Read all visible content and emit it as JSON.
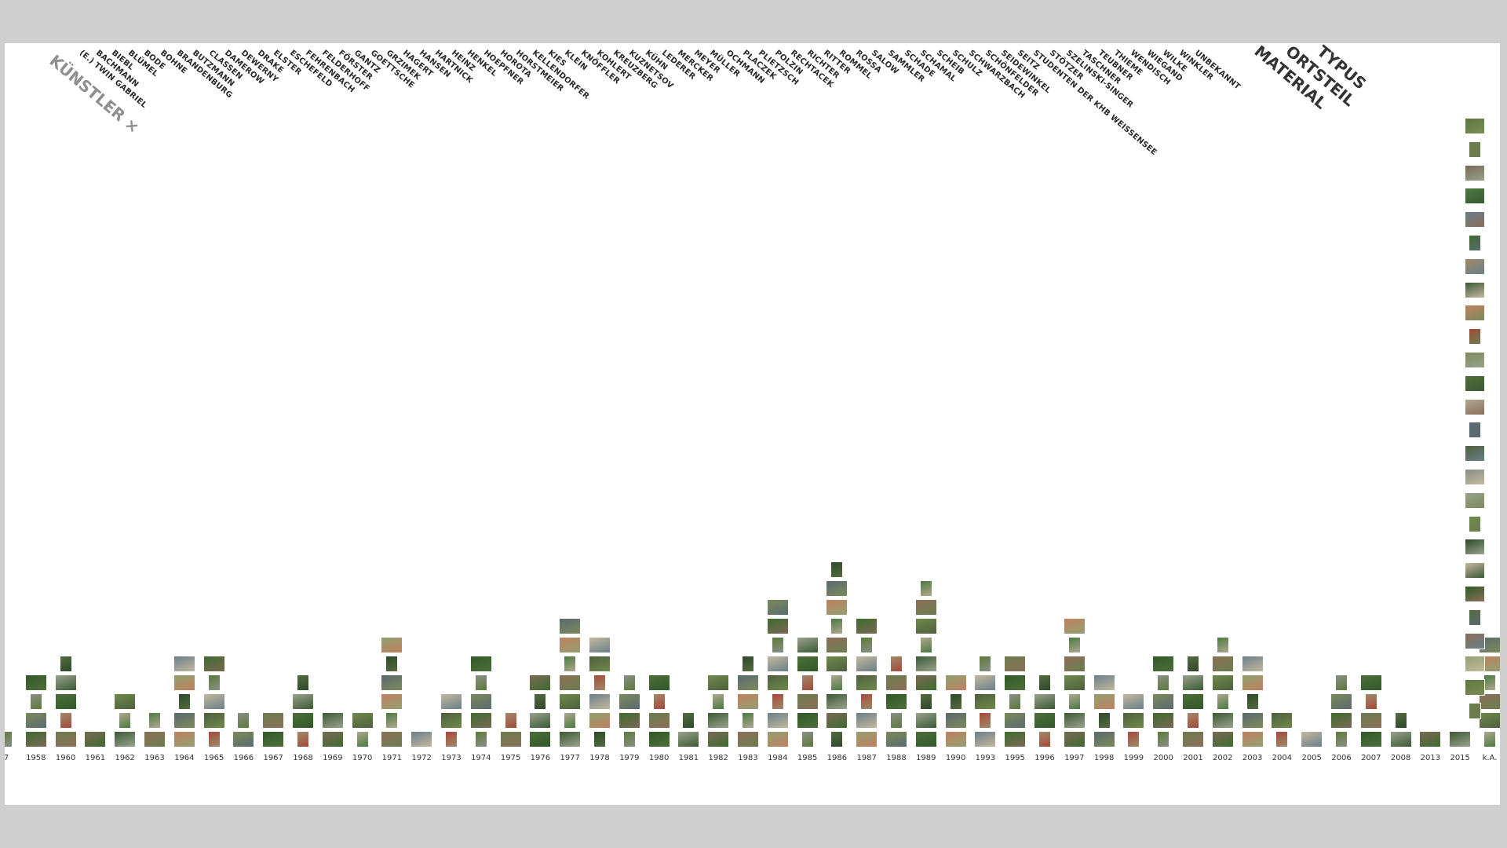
{
  "header": {
    "artist_heading": "KÜNSTLER",
    "artist_close": "×",
    "categories": [
      "MATERIAL",
      "ORTSTEIL",
      "TYPUS"
    ]
  },
  "artists": [
    "(E.) TWIN GABRIEL",
    "BACHMANN",
    "BIEBL",
    "BLÜMEL",
    "BODE",
    "BOHNE",
    "BRANDENBURG",
    "BUTZMANN",
    "CLASSEN",
    "DAMEROW",
    "DEWERNY",
    "DRAKE",
    "ELSTER",
    "ESCHEFELD",
    "FEHRENBACH",
    "FELDERHOFF",
    "FÖRSTER",
    "GANTZ",
    "GOETTSCHE",
    "GRZIMEK",
    "HAGERT",
    "HANSEN",
    "HARTNICK",
    "HEINZ",
    "HENKEL",
    "HOEPFNER",
    "HOROTA",
    "HORSTMEIER",
    "KELLENDORFER",
    "KIES",
    "KLEIN",
    "KNÖFFLER",
    "KOHLERT",
    "KREUZBERG",
    "KUZNETSOV",
    "KÜHN",
    "LEDERER",
    "MERCKER",
    "MEYER",
    "MÜLLER",
    "OCHMANN",
    "PLACZEK",
    "PLIETZSCH",
    "POLZIN",
    "RECHTACEK",
    "RICHTER",
    "RITTER",
    "ROMMEL",
    "ROSSA",
    "SALOW",
    "SAMMLER",
    "SCHADE",
    "SCHAMAL",
    "SCHEIB",
    "SCHULZ",
    "SCHWARZBACH",
    "SCHÖNFELDER",
    "SEIDEWINKEL",
    "SEITZ",
    "STUDENTEN DER KHB WEISSENSEE",
    "STÖTZER",
    "SZELINSKI-SINGER",
    "TASCHNER",
    "TEUBNER",
    "THIEME",
    "WENDISCH",
    "WIEGAND",
    "WILKE",
    "WINKLER",
    "UNBEKANNT"
  ],
  "timeline": {
    "years": [
      "7",
      "1958",
      "1960",
      "1961",
      "1962",
      "1963",
      "1964",
      "1965",
      "1966",
      "1967",
      "1968",
      "1969",
      "1970",
      "1971",
      "1972",
      "1973",
      "1974",
      "1975",
      "1976",
      "1977",
      "1978",
      "1979",
      "1980",
      "1981",
      "1982",
      "1983",
      "1984",
      "1985",
      "1986",
      "1987",
      "1988",
      "1989",
      "1990",
      "1993",
      "1995",
      "1996",
      "1997",
      "1998",
      "1999",
      "2000",
      "2001",
      "2002",
      "2003",
      "2004",
      "2005",
      "2006",
      "2007",
      "2008",
      "2013",
      "2015",
      "k.A."
    ],
    "counts": [
      1,
      4,
      5,
      1,
      3,
      2,
      5,
      5,
      2,
      2,
      4,
      2,
      2,
      6,
      1,
      3,
      5,
      2,
      4,
      7,
      6,
      4,
      4,
      2,
      4,
      5,
      8,
      6,
      10,
      7,
      5,
      9,
      4,
      5,
      5,
      4,
      7,
      4,
      3,
      5,
      5,
      6,
      5,
      2,
      1,
      4,
      4,
      2,
      1,
      1,
      6
    ],
    "sidebar_count": 26,
    "thumb_colors": [
      "#5d7a3a",
      "#3f6b2f",
      "#7c8a5a",
      "#8a8f86",
      "#2f5a28",
      "#6b7d4e",
      "#a08a6a",
      "#4e6e3a",
      "#9aa28d",
      "#556b3f",
      "#7a6a55",
      "#3c5a34",
      "#b0a890",
      "#6f8a4a",
      "#8b6f5a",
      "#4a7a40",
      "#c08060",
      "#5a6a70",
      "#2e4a2a",
      "#93a070",
      "#6a7f88",
      "#a54a3a",
      "#4f5f3f",
      "#c4b8a0"
    ]
  }
}
